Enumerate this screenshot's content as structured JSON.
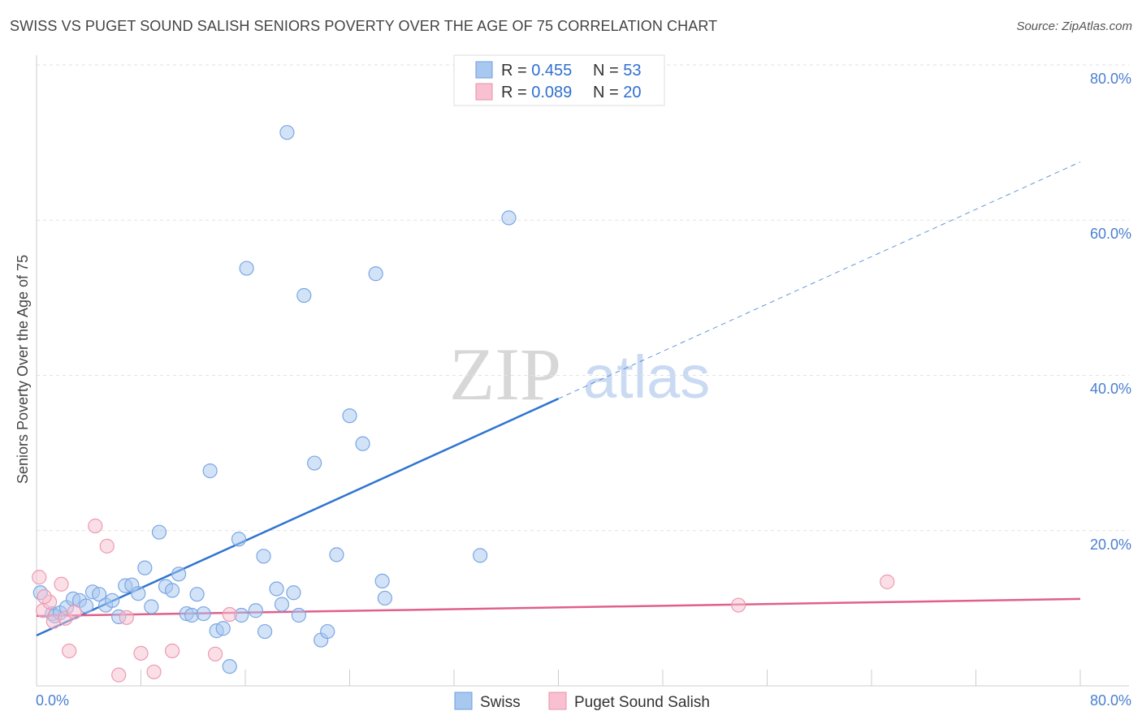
{
  "title": "SWISS VS PUGET SOUND SALISH SENIORS POVERTY OVER THE AGE OF 75 CORRELATION CHART",
  "source": "Source: ZipAtlas.com",
  "watermark": {
    "zip": "ZIP",
    "atlas": "atlas"
  },
  "legend": {
    "r_label": "R = ",
    "n_label": "N = ",
    "entries": [
      {
        "series": "Swiss",
        "r": "0.455",
        "n": "53",
        "color": "#a8c8f0",
        "stroke": "#6d9ee0"
      },
      {
        "series": "Puget Sound Salish",
        "r": "0.089",
        "n": "20",
        "color": "#f8c0d0",
        "stroke": "#e890aa"
      }
    ]
  },
  "chart_data": {
    "type": "scatter",
    "title": "SWISS VS PUGET SOUND SALISH SENIORS POVERTY OVER THE AGE OF 75 CORRELATION CHART",
    "xlabel": "",
    "ylabel": "Seniors Poverty Over the Age of 75",
    "xlim": [
      0,
      80
    ],
    "ylim": [
      0,
      80
    ],
    "x_tick_labels": [
      "0.0%",
      "80.0%"
    ],
    "y_tick_labels": [
      "20.0%",
      "40.0%",
      "60.0%",
      "80.0%"
    ],
    "y_ticks": [
      20,
      40,
      60,
      80
    ],
    "grid": true,
    "legend_position": "top-center",
    "series": [
      {
        "name": "Swiss",
        "color": "#a8c8f0",
        "line_color": "#2f74d0",
        "trend": {
          "x0": 0,
          "y0": 6.5,
          "x1": 40,
          "y1": 37,
          "dashed_to_x": 80,
          "dashed_to_y": 67.5
        },
        "points": [
          [
            1.2,
            9.3
          ],
          [
            1.4,
            9.0
          ],
          [
            1.8,
            9.4
          ],
          [
            2.3,
            10.1
          ],
          [
            2.8,
            11.2
          ],
          [
            3.3,
            11.0
          ],
          [
            3.8,
            10.3
          ],
          [
            4.3,
            12.1
          ],
          [
            4.8,
            11.8
          ],
          [
            5.3,
            10.4
          ],
          [
            5.8,
            11.0
          ],
          [
            6.3,
            8.9
          ],
          [
            6.8,
            12.9
          ],
          [
            7.3,
            13.0
          ],
          [
            7.8,
            11.9
          ],
          [
            8.3,
            15.2
          ],
          [
            8.8,
            10.2
          ],
          [
            9.4,
            19.8
          ],
          [
            9.9,
            12.8
          ],
          [
            10.4,
            12.3
          ],
          [
            10.9,
            14.4
          ],
          [
            11.5,
            9.3
          ],
          [
            11.9,
            9.1
          ],
          [
            12.3,
            11.8
          ],
          [
            12.8,
            9.3
          ],
          [
            13.3,
            27.7
          ],
          [
            13.8,
            7.1
          ],
          [
            14.3,
            7.4
          ],
          [
            14.8,
            2.5
          ],
          [
            15.5,
            18.9
          ],
          [
            15.7,
            9.1
          ],
          [
            16.1,
            53.8
          ],
          [
            16.8,
            9.7
          ],
          [
            17.4,
            16.7
          ],
          [
            17.5,
            7.0
          ],
          [
            18.4,
            12.5
          ],
          [
            18.8,
            10.5
          ],
          [
            19.2,
            71.3
          ],
          [
            19.7,
            12.0
          ],
          [
            20.1,
            9.1
          ],
          [
            20.5,
            50.3
          ],
          [
            21.3,
            28.7
          ],
          [
            21.8,
            5.9
          ],
          [
            22.3,
            7.0
          ],
          [
            23.0,
            16.9
          ],
          [
            24.0,
            34.8
          ],
          [
            25.0,
            31.2
          ],
          [
            26.0,
            53.1
          ],
          [
            26.5,
            13.5
          ],
          [
            26.7,
            11.3
          ],
          [
            34.0,
            16.8
          ],
          [
            36.2,
            60.3
          ],
          [
            0.3,
            12.0
          ]
        ]
      },
      {
        "name": "Puget Sound Salish",
        "color": "#f8c0d0",
        "line_color": "#e0608a",
        "trend": {
          "x0": 0,
          "y0": 9.0,
          "x1": 80,
          "y1": 11.2
        },
        "points": [
          [
            0.2,
            14.0
          ],
          [
            0.5,
            9.7
          ],
          [
            1.0,
            10.8
          ],
          [
            1.3,
            8.3
          ],
          [
            1.9,
            13.1
          ],
          [
            2.2,
            8.7
          ],
          [
            2.5,
            4.5
          ],
          [
            2.9,
            9.5
          ],
          [
            4.5,
            20.6
          ],
          [
            5.4,
            18.0
          ],
          [
            6.3,
            1.4
          ],
          [
            6.9,
            8.8
          ],
          [
            8.0,
            4.2
          ],
          [
            9.0,
            1.8
          ],
          [
            10.4,
            4.5
          ],
          [
            13.7,
            4.1
          ],
          [
            14.8,
            9.2
          ],
          [
            53.8,
            10.4
          ],
          [
            65.2,
            13.4
          ],
          [
            0.6,
            11.5
          ]
        ]
      }
    ]
  }
}
